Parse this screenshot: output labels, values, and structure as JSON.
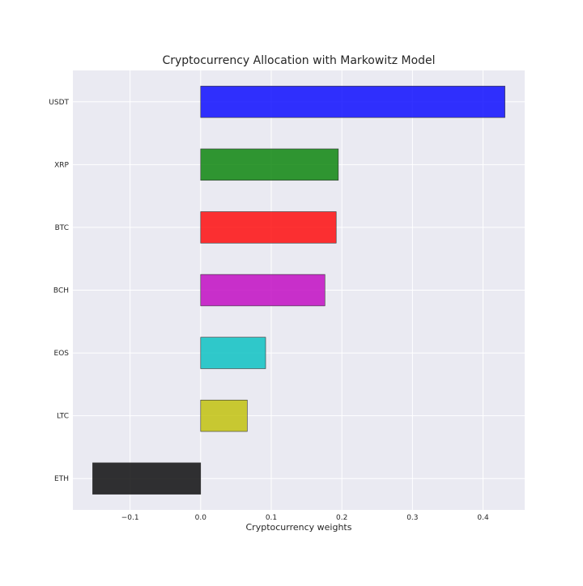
{
  "chart_data": {
    "type": "bar",
    "orientation": "horizontal",
    "title": "Cryptocurrency Allocation with Markowitz Model",
    "xlabel": "Cryptocurrency weights",
    "ylabel": "",
    "categories": [
      "USDT",
      "XRP",
      "BTC",
      "BCH",
      "EOS",
      "LTC",
      "ETH"
    ],
    "values": [
      0.431,
      0.195,
      0.192,
      0.176,
      0.092,
      0.066,
      -0.153
    ],
    "colors": [
      "#0000ff",
      "#008000",
      "#ff0000",
      "#bf00bf",
      "#00bfbf",
      "#bfbf00",
      "#000000"
    ],
    "xlim": [
      -0.181,
      0.459
    ],
    "xticks": [
      -0.1,
      0.0,
      0.1,
      0.2,
      0.3,
      0.4
    ],
    "xtick_labels": [
      "−0.1",
      "0.0",
      "0.1",
      "0.2",
      "0.3",
      "0.4"
    ],
    "grid": true,
    "background": "#eaeaf2"
  }
}
